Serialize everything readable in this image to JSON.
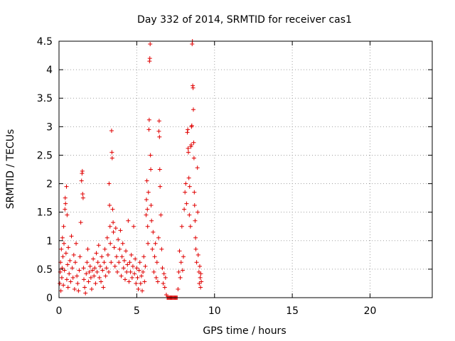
{
  "chart_data": {
    "type": "scatter",
    "title": "Day 332 of 2014, SRMTID for receiver cas1",
    "xlabel": "GPS time / hours",
    "ylabel": "SRMTID / TECUs",
    "xlim": [
      0,
      24
    ],
    "ylim": [
      0,
      4.5
    ],
    "xticks": [
      0,
      5,
      10,
      15,
      20
    ],
    "yticks": [
      0,
      0.5,
      1,
      1.5,
      2,
      2.5,
      3,
      3.5,
      4,
      4.5
    ],
    "xtick_labels": [
      "0",
      "5",
      "10",
      "15",
      "20"
    ],
    "ytick_labels": [
      "0",
      "0.5",
      "1",
      "1.5",
      "2",
      "2.5",
      "3",
      "3.5",
      "4",
      "4.5"
    ],
    "grid": true,
    "marker": "plus",
    "color": "#e00000",
    "series": [
      {
        "points": [
          [
            0.05,
            0.25
          ],
          [
            0.08,
            0.45
          ],
          [
            0.1,
            0.62
          ],
          [
            0.12,
            0.12
          ],
          [
            0.15,
            0.85
          ],
          [
            0.18,
            0.35
          ],
          [
            0.2,
            0.52
          ],
          [
            0.22,
            1.05
          ],
          [
            0.25,
            0.72
          ],
          [
            0.28,
            0.22
          ],
          [
            0.3,
            1.25
          ],
          [
            0.32,
            0.95
          ],
          [
            0.35,
            0.48
          ],
          [
            0.38,
            1.55
          ],
          [
            0.4,
            1.75
          ],
          [
            0.42,
            1.65
          ],
          [
            0.45,
            0.78
          ],
          [
            0.48,
            1.95
          ],
          [
            0.5,
            0.32
          ],
          [
            0.52,
            1.45
          ],
          [
            0.55,
            0.58
          ],
          [
            0.58,
            0.18
          ],
          [
            0.6,
            0.88
          ],
          [
            0.65,
            0.42
          ],
          [
            0.7,
            0.65
          ],
          [
            0.75,
            0.28
          ],
          [
            0.8,
            1.08
          ],
          [
            0.85,
            0.52
          ],
          [
            0.9,
            0.35
          ],
          [
            0.95,
            0.75
          ],
          [
            1.0,
            0.15
          ],
          [
            1.05,
            0.62
          ],
          [
            1.1,
            0.95
          ],
          [
            1.15,
            0.38
          ],
          [
            1.2,
            0.25
          ],
          [
            1.25,
            0.12
          ],
          [
            1.3,
            0.48
          ],
          [
            1.35,
            0.72
          ],
          [
            1.4,
            1.32
          ],
          [
            1.45,
            2.05
          ],
          [
            1.48,
            2.18
          ],
          [
            1.5,
            2.22
          ],
          [
            1.52,
            1.82
          ],
          [
            1.55,
            1.75
          ],
          [
            1.58,
            0.52
          ],
          [
            1.6,
            0.32
          ],
          [
            1.65,
            0.18
          ],
          [
            1.7,
            0.08
          ],
          [
            1.75,
            0.42
          ],
          [
            1.8,
            0.62
          ],
          [
            1.85,
            0.85
          ],
          [
            1.9,
            0.28
          ],
          [
            1.95,
            0.45
          ],
          [
            2.0,
            0.55
          ],
          [
            2.05,
            0.35
          ],
          [
            2.1,
            0.15
          ],
          [
            2.15,
            0.48
          ],
          [
            2.2,
            0.68
          ],
          [
            2.25,
            0.38
          ],
          [
            2.3,
            0.52
          ],
          [
            2.35,
            0.25
          ],
          [
            2.4,
            0.78
          ],
          [
            2.45,
            0.45
          ],
          [
            2.5,
            0.62
          ],
          [
            2.55,
            0.92
          ],
          [
            2.6,
            0.35
          ],
          [
            2.65,
            0.55
          ],
          [
            2.7,
            0.28
          ],
          [
            2.75,
            0.72
          ],
          [
            2.8,
            0.48
          ],
          [
            2.85,
            0.18
          ],
          [
            2.9,
            0.62
          ],
          [
            2.95,
            0.85
          ],
          [
            3.0,
            0.38
          ],
          [
            3.05,
            0.52
          ],
          [
            3.1,
            1.05
          ],
          [
            3.15,
            0.75
          ],
          [
            3.2,
            0.45
          ],
          [
            3.22,
            2.0
          ],
          [
            3.25,
            1.62
          ],
          [
            3.28,
            1.25
          ],
          [
            3.3,
            0.95
          ],
          [
            3.35,
            0.62
          ],
          [
            3.38,
            2.93
          ],
          [
            3.4,
            2.55
          ],
          [
            3.42,
            2.45
          ],
          [
            3.45,
            1.55
          ],
          [
            3.48,
            1.32
          ],
          [
            3.5,
            1.15
          ],
          [
            3.55,
            0.88
          ],
          [
            3.6,
            0.55
          ],
          [
            3.65,
            1.22
          ],
          [
            3.7,
            0.72
          ],
          [
            3.75,
            0.45
          ],
          [
            3.8,
            1.02
          ],
          [
            3.85,
            0.62
          ],
          [
            3.9,
            0.85
          ],
          [
            3.95,
            1.18
          ],
          [
            4.0,
            0.38
          ],
          [
            4.05,
            0.72
          ],
          [
            4.1,
            0.95
          ],
          [
            4.15,
            0.52
          ],
          [
            4.2,
            0.65
          ],
          [
            4.25,
            0.32
          ],
          [
            4.3,
            0.82
          ],
          [
            4.35,
            0.45
          ],
          [
            4.4,
            0.58
          ],
          [
            4.45,
            1.35
          ],
          [
            4.5,
            0.28
          ],
          [
            4.55,
            0.62
          ],
          [
            4.6,
            0.45
          ],
          [
            4.65,
            0.75
          ],
          [
            4.7,
            0.35
          ],
          [
            4.75,
            0.55
          ],
          [
            4.8,
            1.25
          ],
          [
            4.85,
            0.42
          ],
          [
            4.9,
            0.68
          ],
          [
            4.95,
            0.25
          ],
          [
            5.0,
            0.52
          ],
          [
            5.05,
            0.35
          ],
          [
            5.1,
            0.15
          ],
          [
            5.15,
            0.48
          ],
          [
            5.2,
            0.62
          ],
          [
            5.25,
            0.25
          ],
          [
            5.3,
            0.38
          ],
          [
            5.35,
            0.12
          ],
          [
            5.4,
            0.45
          ],
          [
            5.45,
            0.72
          ],
          [
            5.5,
            0.28
          ],
          [
            5.55,
            0.55
          ],
          [
            5.6,
            1.45
          ],
          [
            5.62,
            1.72
          ],
          [
            5.65,
            2.05
          ],
          [
            5.68,
            1.55
          ],
          [
            5.7,
            1.25
          ],
          [
            5.72,
            0.95
          ],
          [
            5.75,
            1.85
          ],
          [
            5.78,
            2.95
          ],
          [
            5.8,
            3.12
          ],
          [
            5.82,
            4.15
          ],
          [
            5.84,
            4.2
          ],
          [
            5.86,
            4.45
          ],
          [
            5.88,
            2.5
          ],
          [
            5.9,
            2.25
          ],
          [
            5.92,
            1.62
          ],
          [
            5.95,
            1.35
          ],
          [
            6.0,
            0.85
          ],
          [
            6.05,
            1.15
          ],
          [
            6.1,
            0.45
          ],
          [
            6.15,
            0.72
          ],
          [
            6.2,
            0.95
          ],
          [
            6.25,
            0.35
          ],
          [
            6.3,
            0.62
          ],
          [
            6.35,
            0.28
          ],
          [
            6.4,
            1.05
          ],
          [
            6.42,
            2.92
          ],
          [
            6.44,
            3.1
          ],
          [
            6.46,
            2.82
          ],
          [
            6.48,
            2.25
          ],
          [
            6.5,
            1.95
          ],
          [
            6.55,
            1.45
          ],
          [
            6.6,
            0.85
          ],
          [
            6.65,
            0.52
          ],
          [
            6.7,
            0.25
          ],
          [
            6.75,
            0.42
          ],
          [
            6.8,
            0.18
          ],
          [
            6.85,
            0.35
          ],
          [
            6.9,
            0.05
          ],
          [
            6.95,
            0.0
          ],
          [
            7.0,
            0.0
          ],
          [
            7.05,
            0.0
          ],
          [
            7.1,
            0.0
          ],
          [
            7.15,
            0.0
          ],
          [
            7.2,
            0.0
          ],
          [
            7.25,
            0.0
          ],
          [
            7.3,
            0.0
          ],
          [
            7.35,
            0.0
          ],
          [
            7.4,
            0.0
          ],
          [
            7.45,
            0.0
          ],
          [
            7.5,
            0.0
          ],
          [
            7.55,
            0.0
          ],
          [
            7.6,
            0.0
          ],
          [
            7.65,
            0.15
          ],
          [
            7.7,
            0.45
          ],
          [
            7.75,
            0.82
          ],
          [
            7.8,
            0.35
          ],
          [
            7.85,
            0.62
          ],
          [
            7.9,
            1.25
          ],
          [
            7.95,
            0.48
          ],
          [
            8.0,
            0.72
          ],
          [
            8.05,
            1.55
          ],
          [
            8.1,
            1.85
          ],
          [
            8.15,
            2.0
          ],
          [
            8.2,
            1.65
          ],
          [
            8.25,
            2.9
          ],
          [
            8.28,
            2.95
          ],
          [
            8.3,
            2.62
          ],
          [
            8.32,
            2.55
          ],
          [
            8.35,
            2.1
          ],
          [
            8.38,
            1.45
          ],
          [
            8.4,
            1.95
          ],
          [
            8.45,
            1.25
          ],
          [
            8.48,
            2.65
          ],
          [
            8.5,
            2.68
          ],
          [
            8.52,
            3.0
          ],
          [
            8.54,
            3.02
          ],
          [
            8.56,
            4.45
          ],
          [
            8.58,
            4.5
          ],
          [
            8.6,
            3.72
          ],
          [
            8.62,
            3.68
          ],
          [
            8.64,
            3.3
          ],
          [
            8.66,
            2.72
          ],
          [
            8.68,
            2.45
          ],
          [
            8.7,
            1.85
          ],
          [
            8.72,
            1.62
          ],
          [
            8.75,
            1.35
          ],
          [
            8.78,
            1.05
          ],
          [
            8.8,
            0.85
          ],
          [
            8.85,
            0.62
          ],
          [
            8.9,
            2.28
          ],
          [
            8.92,
            1.5
          ],
          [
            8.95,
            0.75
          ],
          [
            9.0,
            0.45
          ],
          [
            9.02,
            0.25
          ],
          [
            9.05,
            0.55
          ],
          [
            9.08,
            0.35
          ],
          [
            9.1,
            0.18
          ],
          [
            9.12,
            0.42
          ],
          [
            9.15,
            0.28
          ]
        ]
      }
    ]
  }
}
